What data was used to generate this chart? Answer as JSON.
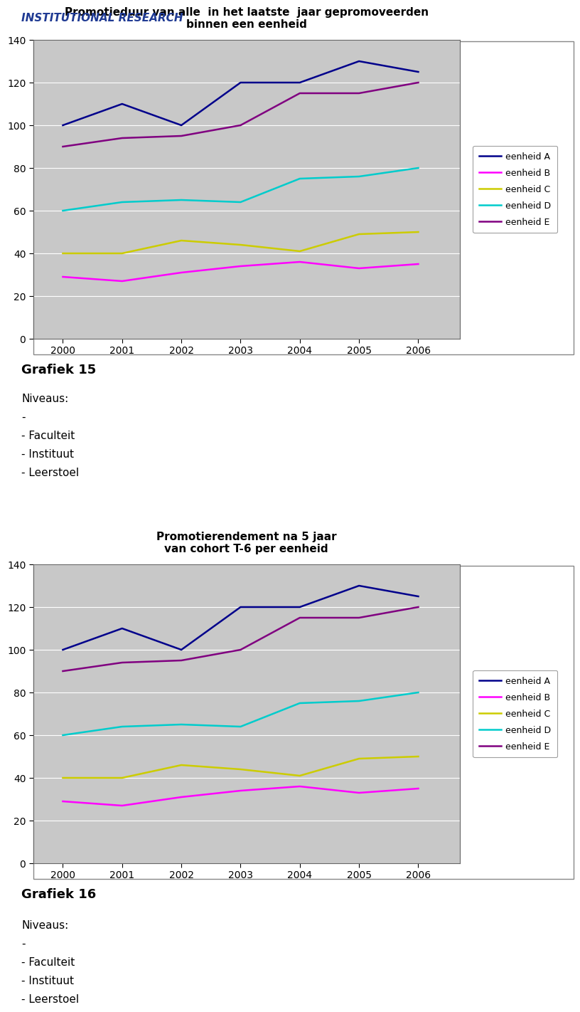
{
  "years": [
    2000,
    2001,
    2002,
    2003,
    2004,
    2005,
    2006
  ],
  "chart1": {
    "title": "Promotieduur van alle  in het laatste  jaar gepromoveerden\nbinnen een eenheid",
    "eenheidA": [
      100,
      110,
      100,
      120,
      120,
      130,
      125
    ],
    "eenheidB": [
      29,
      27,
      31,
      34,
      36,
      33,
      35
    ],
    "eenheidC": [
      40,
      40,
      46,
      44,
      41,
      49,
      50
    ],
    "eenheidD": [
      60,
      64,
      65,
      64,
      75,
      76,
      80
    ],
    "eenheidE": [
      90,
      94,
      95,
      100,
      115,
      115,
      120
    ]
  },
  "chart2": {
    "title": "Promotierendement na 5 jaar\nvan cohort T-6 per eenheid",
    "eenheidA": [
      100,
      110,
      100,
      120,
      120,
      130,
      125
    ],
    "eenheidB": [
      29,
      27,
      31,
      34,
      36,
      33,
      35
    ],
    "eenheidC": [
      40,
      40,
      46,
      44,
      41,
      49,
      50
    ],
    "eenheidD": [
      60,
      64,
      65,
      64,
      75,
      76,
      80
    ],
    "eenheidE": [
      90,
      94,
      95,
      100,
      115,
      115,
      120
    ]
  },
  "colors": {
    "eenheidA": "#00008B",
    "eenheidB": "#FF00FF",
    "eenheidC": "#CCCC00",
    "eenheidD": "#00CCCC",
    "eenheidE": "#800080"
  },
  "ylim": [
    0,
    140
  ],
  "yticks": [
    0,
    20,
    40,
    60,
    80,
    100,
    120,
    140
  ],
  "header_text": "INSTITUTIONAL RESEARCH",
  "header_color": "#1F3A93",
  "chart_bg": "#C8C8C8",
  "fig_bg": "#FFFFFF",
  "plot_linewidth": 1.8,
  "chart_border_color": "#888888",
  "outer_border_color": "#888888"
}
